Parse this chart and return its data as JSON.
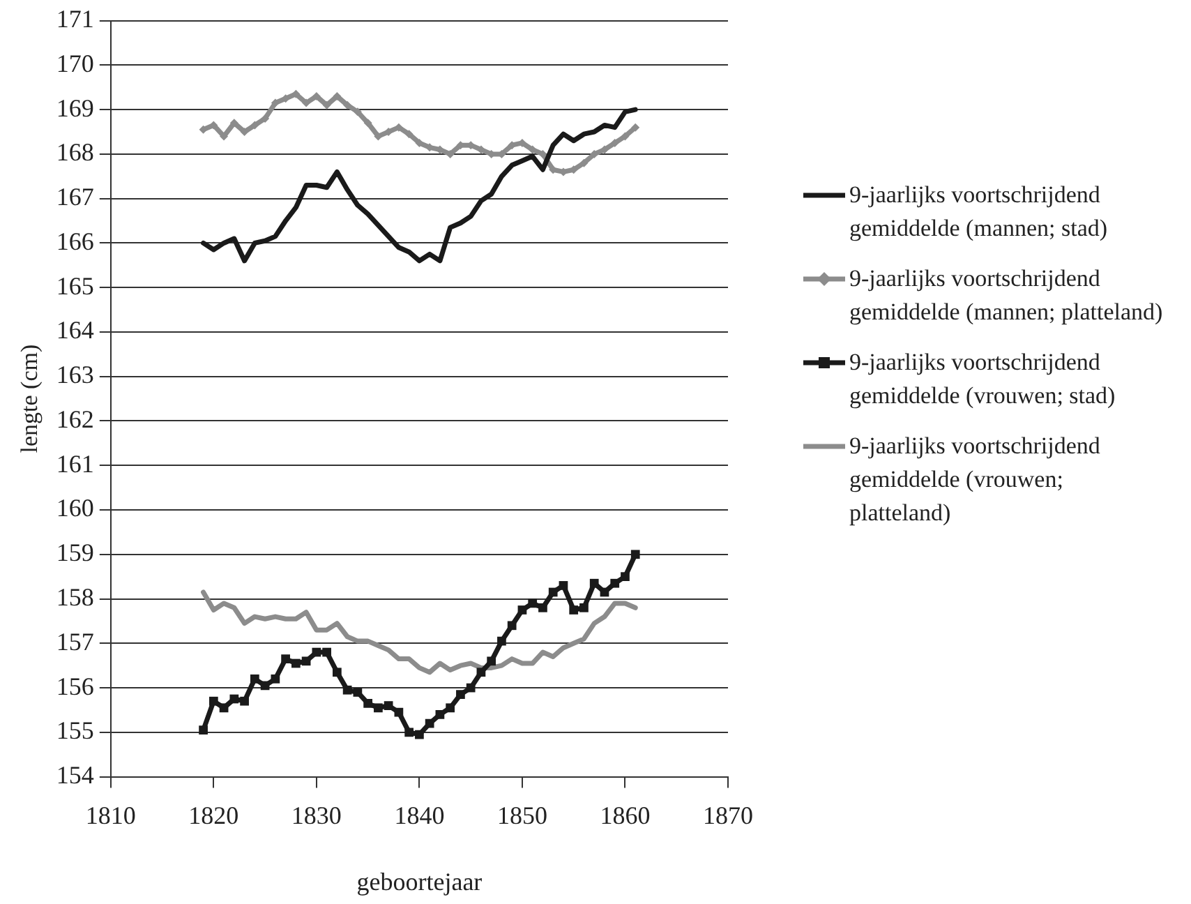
{
  "chart_data": {
    "type": "line",
    "xlabel": "geboortejaar",
    "ylabel": "lengte (cm)",
    "x": [
      1819,
      1820,
      1821,
      1822,
      1823,
      1824,
      1825,
      1826,
      1827,
      1828,
      1829,
      1830,
      1831,
      1832,
      1833,
      1834,
      1835,
      1836,
      1837,
      1838,
      1839,
      1840,
      1841,
      1842,
      1843,
      1844,
      1845,
      1846,
      1847,
      1848,
      1849,
      1850,
      1851,
      1852,
      1853,
      1854,
      1855,
      1856,
      1857,
      1858,
      1859,
      1860,
      1861
    ],
    "series": [
      {
        "name": "9-jaarlijks voortschrijdend gemiddelde (mannen; stad)",
        "color": "#1a1a1a",
        "marker": "none",
        "values": [
          166.0,
          165.85,
          166.0,
          166.1,
          165.6,
          166.0,
          166.05,
          166.15,
          166.5,
          166.8,
          167.3,
          167.3,
          167.25,
          167.6,
          167.2,
          166.85,
          166.65,
          166.4,
          166.15,
          165.9,
          165.8,
          165.6,
          165.75,
          165.6,
          166.35,
          166.45,
          166.6,
          166.95,
          167.1,
          167.5,
          167.75,
          167.85,
          167.95,
          167.65,
          168.2,
          168.45,
          168.3,
          168.45,
          168.5,
          168.65,
          168.6,
          168.95,
          169.0
        ]
      },
      {
        "name": "9-jaarlijks voortschrijdend gemiddelde (mannen; platteland)",
        "color": "#8c8c8c",
        "marker": "diamond",
        "values": [
          168.55,
          168.65,
          168.4,
          168.7,
          168.5,
          168.65,
          168.8,
          169.15,
          169.25,
          169.35,
          169.15,
          169.3,
          169.1,
          169.3,
          169.1,
          168.95,
          168.7,
          168.4,
          168.5,
          168.6,
          168.45,
          168.25,
          168.15,
          168.1,
          168.0,
          168.2,
          168.2,
          168.1,
          168.0,
          168.0,
          168.2,
          168.25,
          168.1,
          168.0,
          167.65,
          167.6,
          167.65,
          167.8,
          168.0,
          168.1,
          168.25,
          168.4,
          168.6
        ]
      },
      {
        "name": "9-jaarlijks voortschrijdend gemiddelde (vrouwen; stad)",
        "color": "#1a1a1a",
        "marker": "square",
        "values": [
          155.05,
          155.7,
          155.55,
          155.75,
          155.7,
          156.2,
          156.05,
          156.2,
          156.65,
          156.55,
          156.6,
          156.8,
          156.8,
          156.35,
          155.95,
          155.9,
          155.65,
          155.55,
          155.6,
          155.45,
          155.0,
          154.95,
          155.2,
          155.4,
          155.55,
          155.85,
          156.0,
          156.35,
          156.6,
          157.05,
          157.4,
          157.75,
          157.9,
          157.8,
          158.15,
          158.3,
          157.75,
          157.8,
          158.35,
          158.15,
          158.35,
          158.5,
          159.0
        ]
      },
      {
        "name": "9-jaarlijks voortschrijdend gemiddelde (vrouwen; platteland)",
        "color": "#8c8c8c",
        "marker": "none",
        "values": [
          158.15,
          157.75,
          157.9,
          157.8,
          157.45,
          157.6,
          157.55,
          157.6,
          157.55,
          157.55,
          157.7,
          157.3,
          157.3,
          157.45,
          157.15,
          157.05,
          157.05,
          156.95,
          156.85,
          156.65,
          156.65,
          156.45,
          156.35,
          156.55,
          156.4,
          156.5,
          156.55,
          156.45,
          156.45,
          156.5,
          156.65,
          156.55,
          156.55,
          156.8,
          156.7,
          156.9,
          157.0,
          157.1,
          157.45,
          157.6,
          157.9,
          157.9,
          157.8
        ]
      }
    ],
    "xlim": [
      1810,
      1870
    ],
    "xticks": [
      1810,
      1820,
      1830,
      1840,
      1850,
      1860,
      1870
    ],
    "ylim": [
      154,
      171
    ],
    "yticks": [
      154,
      155,
      156,
      157,
      158,
      159,
      160,
      161,
      162,
      163,
      164,
      165,
      166,
      167,
      168,
      169,
      170,
      171
    ],
    "grid": "y",
    "legend": "right",
    "line_style": "solid"
  }
}
